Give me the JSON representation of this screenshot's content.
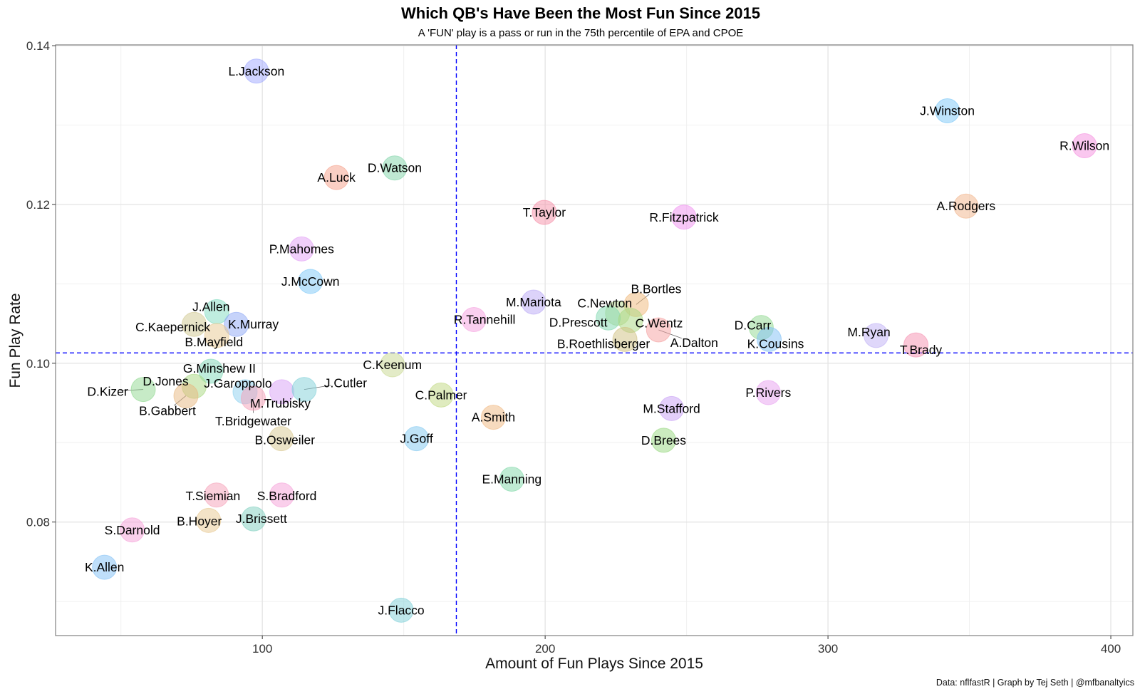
{
  "chart_data": {
    "type": "scatter",
    "title": "Which QB's Have Been the Most Fun Since 2015",
    "subtitle": "A 'FUN' play is a pass or run in the 75th percentile of EPA and CPOE",
    "xlabel": "Amount of Fun Plays Since 2015",
    "ylabel": "Fun Play Rate",
    "caption": "Data: nflfastR | Graph by Tej Seth | @mfbanaltyics",
    "xlim": [
      26.9,
      407.8
    ],
    "ylim": [
      0.0657,
      0.1401
    ],
    "x_ticks": [
      "100",
      "200",
      "300",
      "400"
    ],
    "x_tick_values": [
      100,
      200,
      300,
      400
    ],
    "y_ticks": [
      "0.08",
      "0.10",
      "0.12",
      "0.14"
    ],
    "y_tick_values": [
      0.08,
      0.1,
      0.12,
      0.14
    ],
    "grid": true,
    "reference_lines": {
      "x_mean": 168.6,
      "y_mean": 0.1013,
      "color": "#0000ff"
    },
    "points": [
      {
        "name": "L.Jackson",
        "x": 97.9,
        "y": 0.1368,
        "color": "#9fa8ff"
      },
      {
        "name": "J.Winston",
        "x": 342.2,
        "y": 0.1318,
        "color": "#7cc8f8"
      },
      {
        "name": "R.Wilson",
        "x": 390.7,
        "y": 0.1274,
        "color": "#f58fe0"
      },
      {
        "name": "A.Rodgers",
        "x": 348.8,
        "y": 0.1198,
        "color": "#f2b48a"
      },
      {
        "name": "D.Watson",
        "x": 146.8,
        "y": 0.1246,
        "color": "#7fd4a8"
      },
      {
        "name": "A.Luck",
        "x": 126.2,
        "y": 0.1234,
        "color": "#f5a08a"
      },
      {
        "name": "T.Taylor",
        "x": 199.7,
        "y": 0.119,
        "color": "#f58fa8"
      },
      {
        "name": "R.Fitzpatrick",
        "x": 249.1,
        "y": 0.1184,
        "color": "#f08ff0"
      },
      {
        "name": "P.Mahomes",
        "x": 113.9,
        "y": 0.1144,
        "color": "#e29ff5"
      },
      {
        "name": "J.McCown",
        "x": 117.0,
        "y": 0.1103,
        "color": "#7cc8f8"
      },
      {
        "name": "M.Mariota",
        "x": 195.9,
        "y": 0.1077,
        "color": "#b9a8f5"
      },
      {
        "name": "B.Bortles",
        "x": 232.2,
        "y": 0.1074,
        "color": "#f0b878"
      },
      {
        "name": "C.Newton",
        "x": 225.6,
        "y": 0.1063,
        "color": "#b8d890"
      },
      {
        "name": "D.Prescott",
        "x": 222.3,
        "y": 0.1057,
        "color": "#80d8b0"
      },
      {
        "name": "C.Wentz",
        "x": 230.2,
        "y": 0.1054,
        "color": "#a8d880"
      },
      {
        "name": "A.Dalton",
        "x": 240.1,
        "y": 0.1042,
        "color": "#f5a0a0"
      },
      {
        "name": "B.Roethlisberger",
        "x": 228.2,
        "y": 0.103,
        "color": "#d0c080"
      },
      {
        "name": "R.Tannehill",
        "x": 174.8,
        "y": 0.1055,
        "color": "#f59fdf"
      },
      {
        "name": "J.Allen",
        "x": 83.9,
        "y": 0.1065,
        "color": "#80dcc0"
      },
      {
        "name": "K.Murray",
        "x": 90.8,
        "y": 0.1049,
        "color": "#8ea8f5"
      },
      {
        "name": "C.Kaepernick",
        "x": 75.9,
        "y": 0.1049,
        "color": "#d0c890"
      },
      {
        "name": "B.Mayfield",
        "x": 83.9,
        "y": 0.1035,
        "color": "#e8c890"
      },
      {
        "name": "G.Minshew II",
        "x": 81.8,
        "y": 0.099,
        "color": "#80d8b8"
      },
      {
        "name": "D.Kizer",
        "x": 57.9,
        "y": 0.0967,
        "color": "#90d890"
      },
      {
        "name": "D.Jones",
        "x": 75.9,
        "y": 0.0971,
        "color": "#a8d880"
      },
      {
        "name": "B.Gabbert",
        "x": 73.0,
        "y": 0.0959,
        "color": "#e8b880"
      },
      {
        "name": "J.Garoppolo",
        "x": 93.9,
        "y": 0.0964,
        "color": "#8cd0f0"
      },
      {
        "name": "T.Bridgewater",
        "x": 96.8,
        "y": 0.0956,
        "color": "#f5a0b8"
      },
      {
        "name": "M.Trubisky",
        "x": 106.9,
        "y": 0.0964,
        "color": "#d8a0f5"
      },
      {
        "name": "J.Cutler",
        "x": 114.8,
        "y": 0.0967,
        "color": "#80d0d8"
      },
      {
        "name": "C.Keenum",
        "x": 146.0,
        "y": 0.0998,
        "color": "#c8d890"
      },
      {
        "name": "C.Palmer",
        "x": 163.2,
        "y": 0.096,
        "color": "#c0d880"
      },
      {
        "name": "A.Smith",
        "x": 181.7,
        "y": 0.0932,
        "color": "#f0b880"
      },
      {
        "name": "J.Goff",
        "x": 154.5,
        "y": 0.0905,
        "color": "#80c8f0"
      },
      {
        "name": "D.Carr",
        "x": 276.4,
        "y": 0.1045,
        "color": "#90d890"
      },
      {
        "name": "K.Cousins",
        "x": 279.2,
        "y": 0.103,
        "color": "#80c0f5"
      },
      {
        "name": "M.Ryan",
        "x": 317.0,
        "y": 0.1035,
        "color": "#c0b0f5"
      },
      {
        "name": "T.Brady",
        "x": 331.1,
        "y": 0.1023,
        "color": "#f590b0"
      },
      {
        "name": "P.Rivers",
        "x": 278.9,
        "y": 0.0963,
        "color": "#e8a0f0"
      },
      {
        "name": "M.Stafford",
        "x": 244.7,
        "y": 0.0943,
        "color": "#c8a0f5"
      },
      {
        "name": "D.Brees",
        "x": 241.9,
        "y": 0.0903,
        "color": "#98d880"
      },
      {
        "name": "B.Osweiler",
        "x": 106.7,
        "y": 0.0905,
        "color": "#d8c890"
      },
      {
        "name": "E.Manning",
        "x": 188.2,
        "y": 0.0854,
        "color": "#80d8a8"
      },
      {
        "name": "T.Siemian",
        "x": 83.8,
        "y": 0.0834,
        "color": "#f5a0b8"
      },
      {
        "name": "S.Bradford",
        "x": 106.9,
        "y": 0.0834,
        "color": "#f59fd8"
      },
      {
        "name": "B.Hoyer",
        "x": 81.0,
        "y": 0.0802,
        "color": "#e8c890"
      },
      {
        "name": "J.Brissett",
        "x": 96.9,
        "y": 0.0804,
        "color": "#80d0c0"
      },
      {
        "name": "S.Darnold",
        "x": 54.0,
        "y": 0.079,
        "color": "#f5a0d8"
      },
      {
        "name": "K.Allen",
        "x": 44.2,
        "y": 0.0743,
        "color": "#80c0f5"
      },
      {
        "name": "J.Flacco",
        "x": 149.1,
        "y": 0.0689,
        "color": "#80d0d8"
      }
    ]
  }
}
